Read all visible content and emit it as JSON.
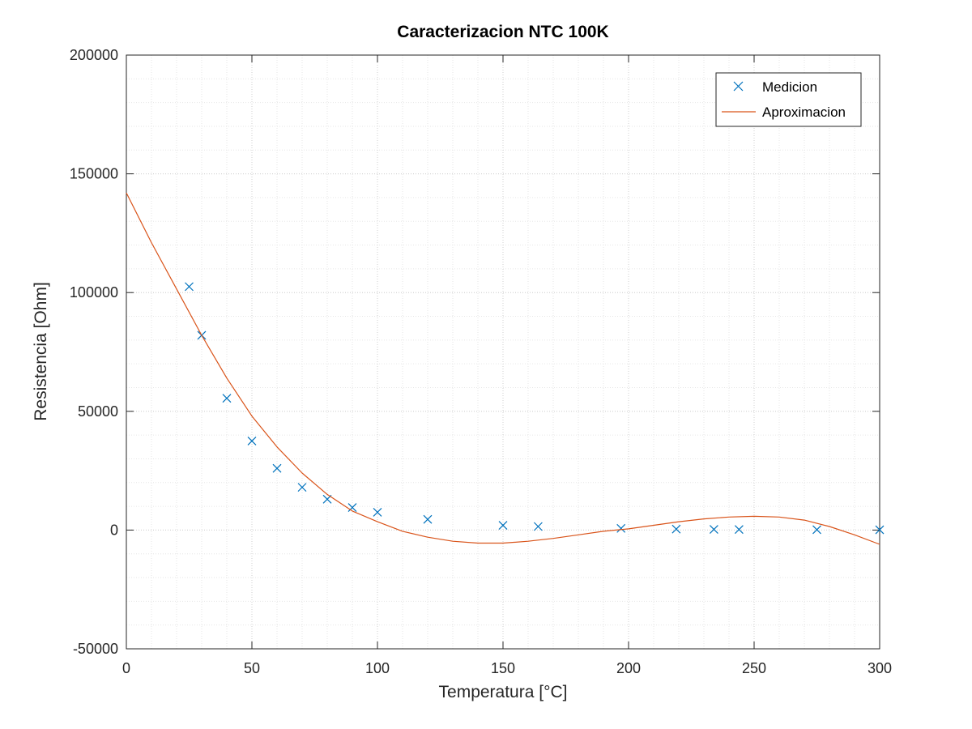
{
  "chart_data": {
    "type": "scatter",
    "title": "Caracterizacion NTC 100K",
    "xlabel": "Temperatura [°C]",
    "ylabel": "Resistencia [Ohm]",
    "xlim": [
      0,
      300
    ],
    "ylim": [
      -50000,
      200000
    ],
    "x_ticks": [
      0,
      50,
      100,
      150,
      200,
      250,
      300
    ],
    "y_ticks": [
      -50000,
      0,
      50000,
      100000,
      150000,
      200000
    ],
    "x_tick_labels": [
      "0",
      "50",
      "100",
      "150",
      "200",
      "250",
      "300"
    ],
    "y_tick_labels": [
      "-50000",
      "0",
      "50000",
      "100000",
      "150000",
      "200000"
    ],
    "grid": true,
    "minor_grid": true,
    "legend_position": "top-right",
    "series": [
      {
        "name": "Medicion",
        "kind": "markers",
        "marker": "x",
        "color": "#0072bd",
        "x": [
          25,
          30,
          40,
          50,
          60,
          70,
          80,
          90,
          100,
          120,
          150,
          164,
          197,
          219,
          234,
          244,
          275,
          300
        ],
        "y": [
          102500,
          82000,
          55500,
          37500,
          26000,
          18000,
          13000,
          9500,
          7500,
          4500,
          2000,
          1500,
          700,
          400,
          300,
          250,
          150,
          100
        ]
      },
      {
        "name": "Aproximacion",
        "kind": "line",
        "color": "#d95319",
        "x": [
          0,
          10,
          20,
          30,
          40,
          50,
          60,
          70,
          80,
          90,
          100,
          110,
          120,
          130,
          140,
          150,
          160,
          170,
          180,
          190,
          200,
          210,
          220,
          230,
          240,
          250,
          260,
          270,
          280,
          290,
          300
        ],
        "y": [
          142000,
          121000,
          101500,
          82000,
          64000,
          48000,
          35000,
          24000,
          15000,
          8000,
          3500,
          -500,
          -3000,
          -4700,
          -5500,
          -5500,
          -4700,
          -3500,
          -2000,
          -500,
          500,
          2000,
          3500,
          4700,
          5500,
          5800,
          5500,
          4200,
          1500,
          -2000,
          -6000
        ]
      }
    ]
  }
}
